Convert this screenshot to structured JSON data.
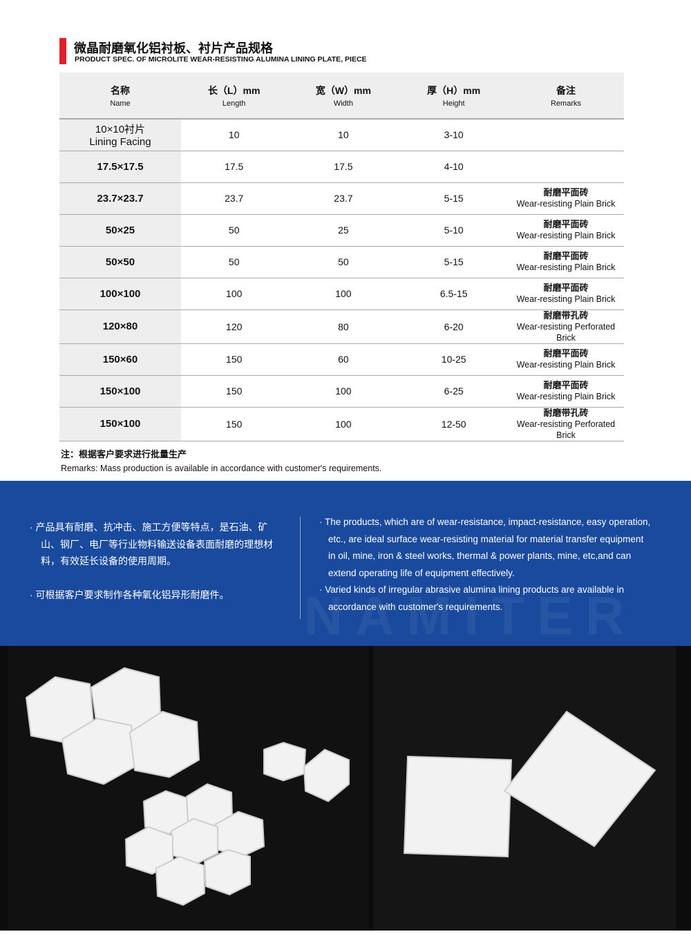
{
  "title": {
    "zh": "微晶耐磨氧化铝衬板、衬片产品规格",
    "en": "PRODUCT SPEC. OF MICROLITE WEAR-RESISTING ALUMINA LINING PLATE, PIECE",
    "accent_color": "#e0202a"
  },
  "table": {
    "headers": [
      {
        "zh": "名称",
        "en": "Name"
      },
      {
        "zh": "长（L）mm",
        "en": "Length"
      },
      {
        "zh": "宽（W）mm",
        "en": "Width"
      },
      {
        "zh": "厚（H）mm",
        "en": "Height"
      },
      {
        "zh": "备注",
        "en": "Remarks"
      }
    ],
    "rows": [
      {
        "name": "10×10衬片",
        "name2": "Lining Facing",
        "l": "10",
        "w": "10",
        "h": "3-10",
        "rzh": "",
        "ren": ""
      },
      {
        "name": "17.5×17.5",
        "l": "17.5",
        "w": "17.5",
        "h": "4-10",
        "rzh": "",
        "ren": ""
      },
      {
        "name": "23.7×23.7",
        "l": "23.7",
        "w": "23.7",
        "h": "5-15",
        "rzh": "耐磨平面砖",
        "ren": "Wear-resisting Plain Brick"
      },
      {
        "name": "50×25",
        "l": "50",
        "w": "25",
        "h": "5-10",
        "rzh": "耐磨平面砖",
        "ren": "Wear-resisting Plain Brick"
      },
      {
        "name": "50×50",
        "l": "50",
        "w": "50",
        "h": "5-15",
        "rzh": "耐磨平面砖",
        "ren": "Wear-resisting Plain Brick"
      },
      {
        "name": "100×100",
        "l": "100",
        "w": "100",
        "h": "6.5-15",
        "rzh": "耐磨平面砖",
        "ren": "Wear-resisting Plain Brick"
      },
      {
        "name": "120×80",
        "l": "120",
        "w": "80",
        "h": "6-20",
        "rzh": "耐磨带孔砖",
        "ren": "Wear-resisting Perforated Brick"
      },
      {
        "name": "150×60",
        "l": "150",
        "w": "60",
        "h": "10-25",
        "rzh": "耐磨平面砖",
        "ren": "Wear-resisting Plain Brick"
      },
      {
        "name": "150×100",
        "l": "150",
        "w": "100",
        "h": "6-25",
        "rzh": "耐磨平面砖",
        "ren": "Wear-resisting Plain Brick"
      },
      {
        "name": "150×100",
        "l": "150",
        "w": "100",
        "h": "12-50",
        "rzh": "耐磨带孔砖",
        "ren": "Wear-resisting Perforated Brick"
      }
    ]
  },
  "note": {
    "zh": "注：根据客户要求进行批量生产",
    "en": "Remarks: Mass production is available in accordance with customer's requirements."
  },
  "features": {
    "zh": [
      "· 产品具有耐磨、抗冲击、施工方便等特点，是石油、矿山、钢厂、电厂等行业物料输送设备表面耐磨的理想材料，有效延长设备的使用周期。",
      "· 可根据客户要求制作各种氧化铝异形耐磨件。"
    ],
    "en": [
      "· The products, which are of wear-resistance, impact-resistance, easy operation, etc., are ideal surface wear-resisting material for material transfer equipment in oil, mine, iron & steel works, thermal & power plants, mine, etc,and can extend operating life of equipment effectively.",
      "· Varied kinds of irregular abrasive alumina lining products are available in accordance with customer's requirements."
    ],
    "watermark": "NAMITER",
    "bg_color": "#1a4a9e"
  }
}
